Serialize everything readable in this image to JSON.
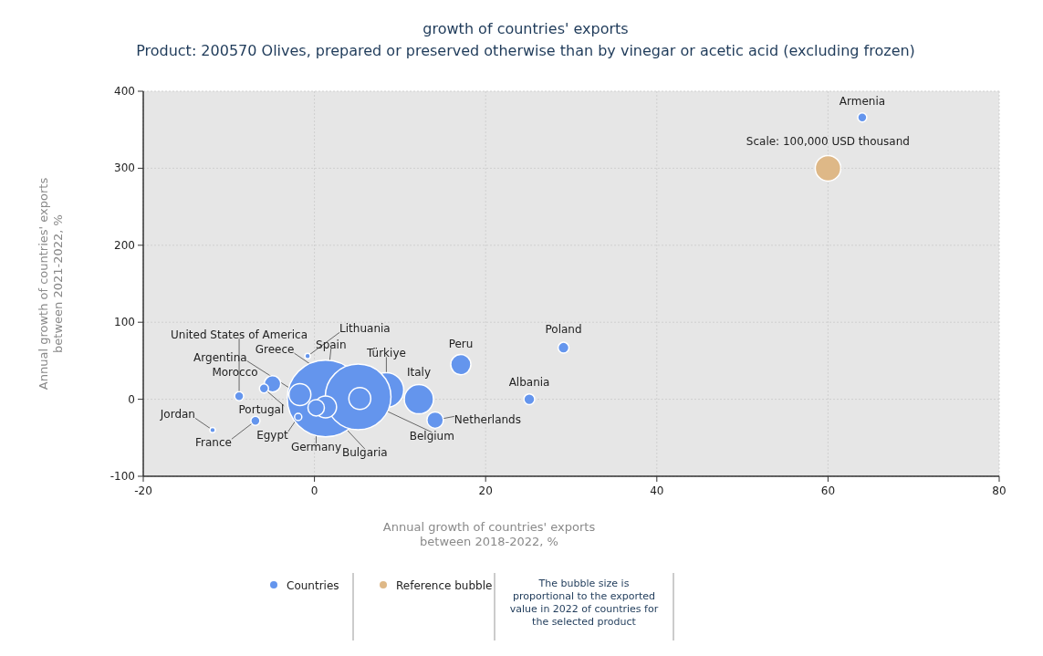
{
  "chart_data": {
    "type": "bubble",
    "title": "growth of countries' exports",
    "subtitle": "Product: 200570 Olives, prepared or preserved otherwise than by vinegar or acetic acid (excluding frozen)",
    "xlabel": "Annual growth of countries' exports between 2018-2022, %",
    "ylabel": "Annual growth of countries' exports between 2021-2022, %",
    "xlim": [
      -20,
      80
    ],
    "ylim": [
      -100,
      400
    ],
    "xticks": [
      -20,
      0,
      20,
      40,
      60,
      80
    ],
    "yticks": [
      -100,
      0,
      100,
      200,
      300,
      400
    ],
    "grid": true,
    "legend": "bottom",
    "series": [
      {
        "name": "Countries",
        "color": "#6495ed",
        "x": [
          64,
          29.1,
          17.1,
          25.1,
          14.1,
          12.2,
          8.4,
          1.3,
          5.1,
          5.3,
          -1.7,
          -4.9,
          -5.9,
          1.3,
          0.2,
          -1.9,
          -6.9,
          -11.9,
          -8.8,
          -0.8
        ],
        "values": [
          366,
          67,
          45,
          0,
          -27,
          0,
          12,
          1,
          3,
          1,
          6,
          20,
          14,
          -10,
          -11,
          -23,
          -28,
          -40,
          4,
          56
        ],
        "sizes": [
          0.014,
          0.02,
          0.069,
          0.02,
          0.046,
          0.145,
          0.205,
          1,
          0.735,
          0.082,
          0.082,
          0.046,
          0.014,
          0.082,
          0.046,
          0.009,
          0.014,
          0.005,
          0.014,
          0.005
        ]
      },
      {
        "name": "Reference bubble",
        "color": "#deb887",
        "x": [
          60
        ],
        "values": [
          300
        ],
        "sizes": [
          0.111
        ]
      }
    ],
    "annotations": [
      {
        "text": "Armenia",
        "x": 64,
        "y": 366
      },
      {
        "text": "Scale: 100,000 USD thousand",
        "x": 60,
        "y": 300
      },
      {
        "text": "Poland",
        "x": 29.1,
        "y": 67
      },
      {
        "text": "Peru",
        "x": 17.1,
        "y": 45
      },
      {
        "text": "Albania",
        "x": 25.1,
        "y": 0
      },
      {
        "text": "Netherlands",
        "x": 14.1,
        "y": -27
      },
      {
        "text": "Italy",
        "x": 12.2,
        "y": 0
      },
      {
        "text": "Türkiye",
        "x": 8.4,
        "y": 12
      },
      {
        "text": "Belgium",
        "x": 5.3,
        "y": 1
      },
      {
        "text": "Greece",
        "x": 5.1,
        "y": 3
      },
      {
        "text": "Spain",
        "x": 1.3,
        "y": 1
      },
      {
        "text": "Lithuania",
        "x": -0.8,
        "y": 56
      },
      {
        "text": "United States of America",
        "x": -8.8,
        "y": 4
      },
      {
        "text": "Argentina",
        "x": -1.7,
        "y": 6
      },
      {
        "text": "Morocco",
        "x": -4.9,
        "y": 20
      },
      {
        "text": "Portugal",
        "x": -5.9,
        "y": 14
      },
      {
        "text": "Jordan",
        "x": -11.9,
        "y": -40
      },
      {
        "text": "France",
        "x": -6.9,
        "y": -28
      },
      {
        "text": "Egypt",
        "x": -1.9,
        "y": -23
      },
      {
        "text": "Germany",
        "x": 0.2,
        "y": -11
      },
      {
        "text": "Bulgaria",
        "x": 1.3,
        "y": -10
      },
      "The bubble size is proportional to the exported value in 2022 of countries for the selected product"
    ]
  }
}
